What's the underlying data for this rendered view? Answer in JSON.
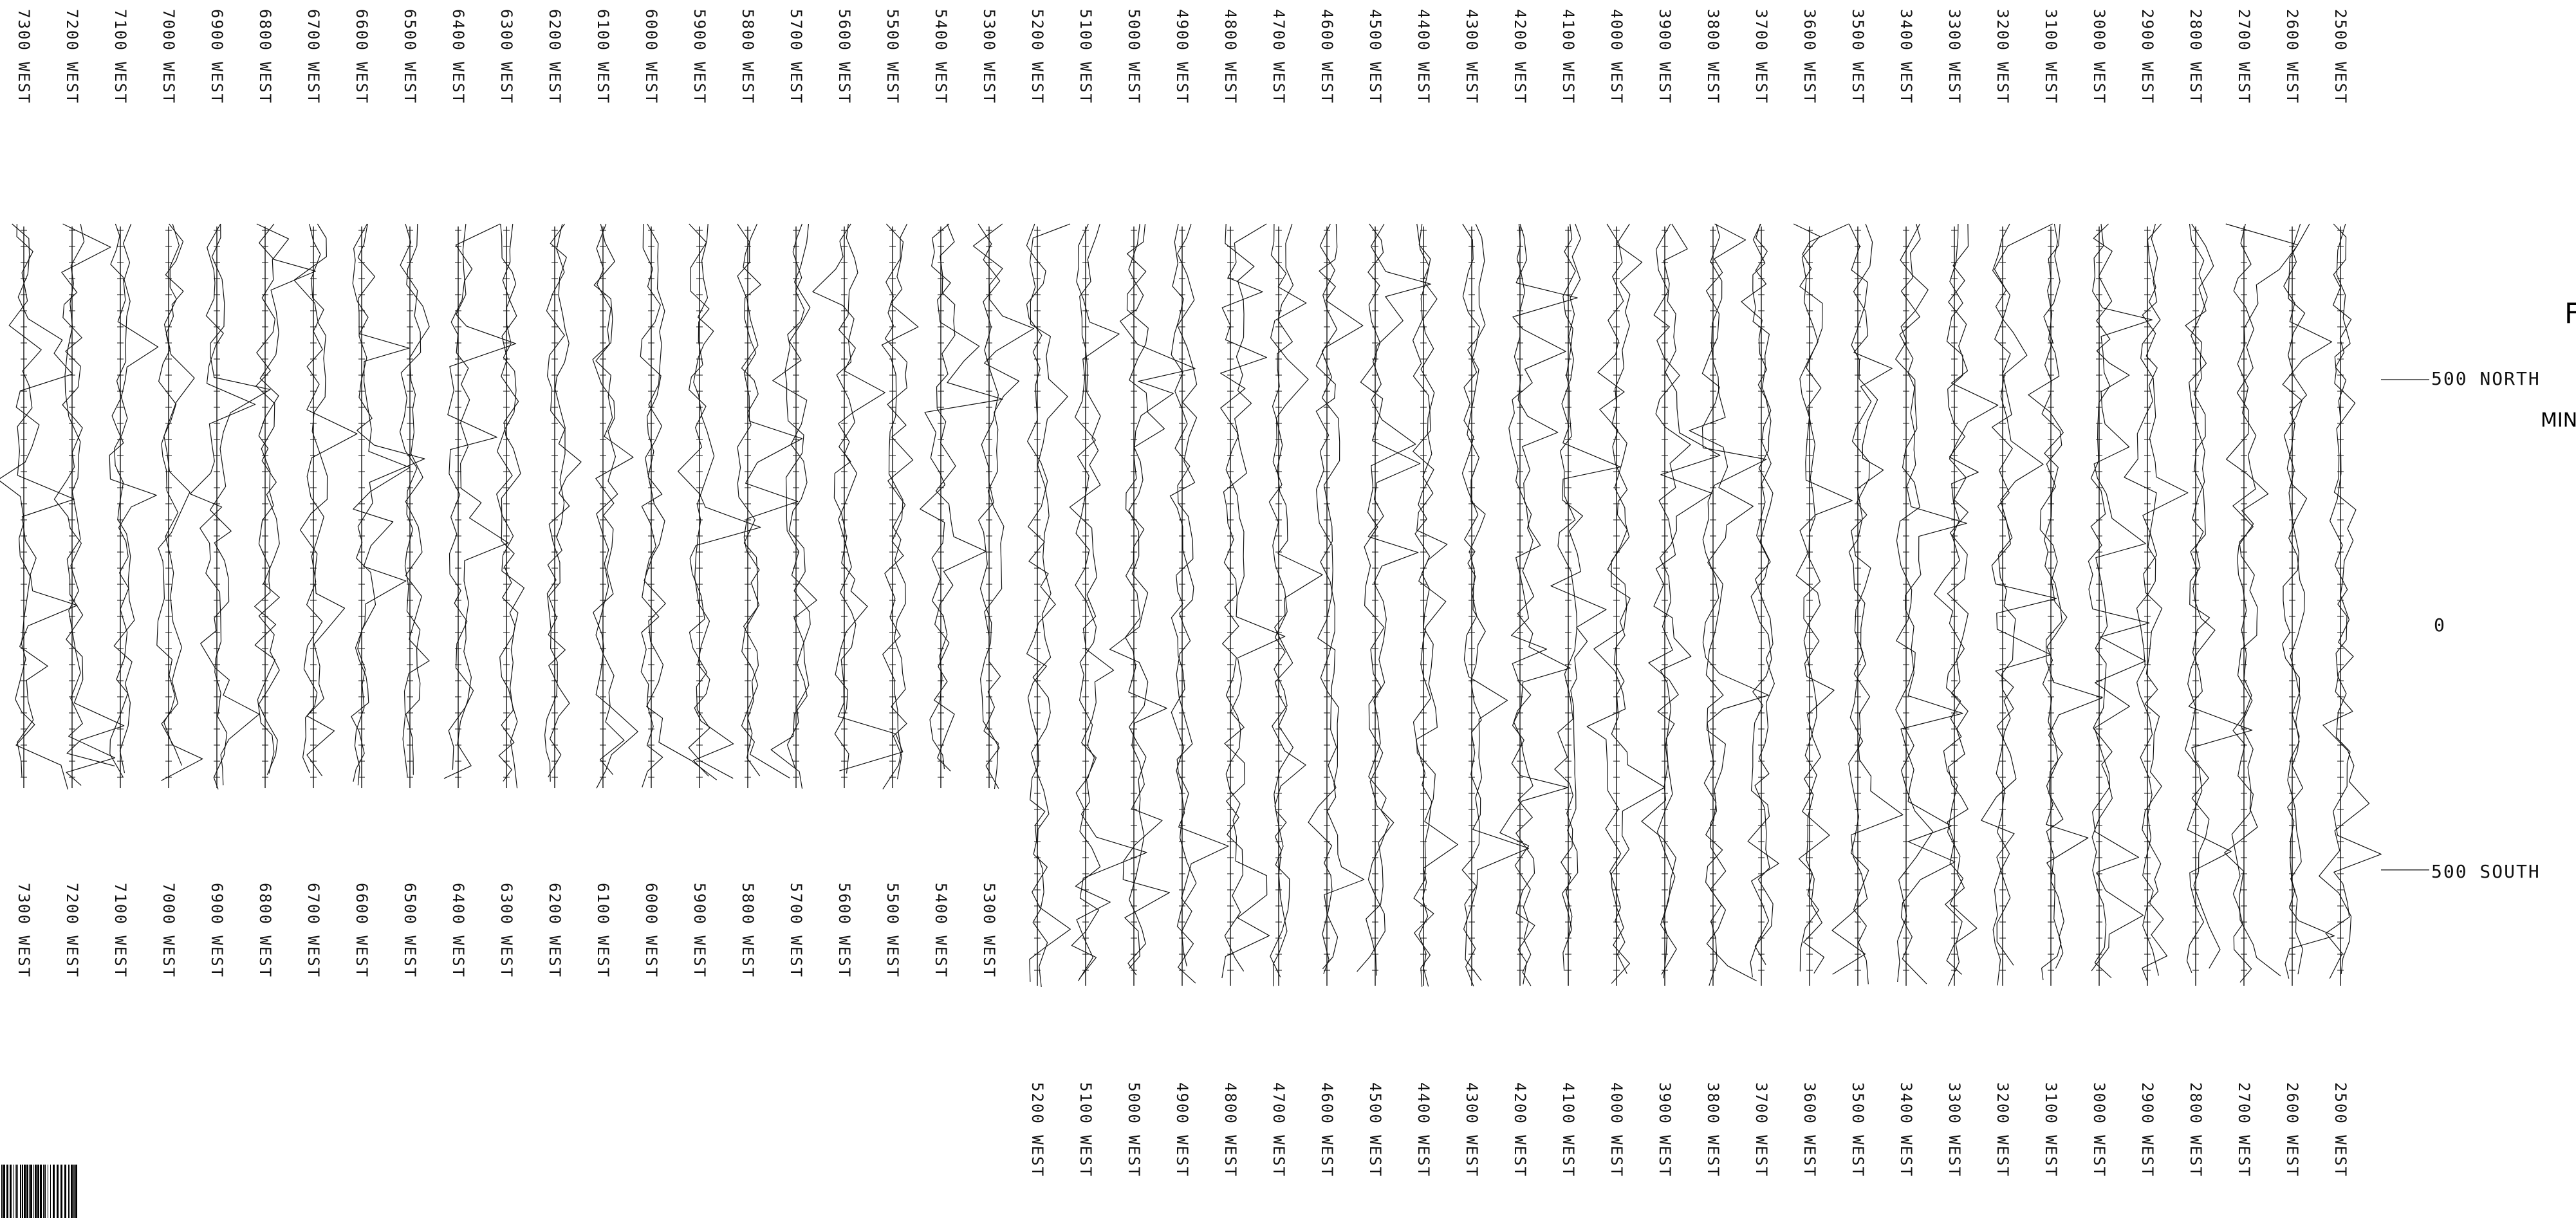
{
  "profile_lines": {
    "top_labels": [
      "7300 WEST",
      "7200 WEST",
      "7100 WEST",
      "7000 WEST",
      "6900 WEST",
      "6800 WEST",
      "6700 WEST",
      "6600 WEST",
      "6500 WEST",
      "6400 WEST",
      "6300 WEST",
      "6200 WEST",
      "6100 WEST",
      "6000 WEST",
      "5900 WEST",
      "5800 WEST",
      "5700 WEST",
      "5600 WEST",
      "5500 WEST",
      "5400 WEST",
      "5300 WEST",
      "5200 WEST",
      "5100 WEST",
      "5000 WEST",
      "4900 WEST",
      "4800 WEST",
      "4700 WEST",
      "4600 WEST",
      "4500 WEST",
      "4400 WEST",
      "4300 WEST",
      "4200 WEST",
      "4100 WEST",
      "4000 WEST",
      "3900 WEST",
      "3800 WEST",
      "3700 WEST",
      "3600 WEST",
      "3500 WEST",
      "3400 WEST",
      "3300 WEST",
      "3200 WEST",
      "3100 WEST",
      "3000 WEST",
      "2900 WEST",
      "2800 WEST",
      "2700 WEST",
      "2600 WEST",
      "2500 WEST"
    ],
    "bottom_labels_upper": [
      "7300 WEST",
      "7200 WEST",
      "7100 WEST",
      "7000 WEST",
      "6900 WEST",
      "6800 WEST",
      "6700 WEST",
      "6600 WEST",
      "6500 WEST",
      "6400 WEST",
      "6300 WEST",
      "6200 WEST",
      "6100 WEST",
      "6000 WEST",
      "5900 WEST",
      "5800 WEST",
      "5700 WEST",
      "5600 WEST",
      "5500 WEST",
      "5400 WEST",
      "5300 WEST"
    ],
    "bottom_labels_lower": [
      "5200 WEST",
      "5100 WEST",
      "5000 WEST",
      "4900 WEST",
      "4800 WEST",
      "4700 WEST",
      "4600 WEST",
      "4500 WEST",
      "4400 WEST",
      "4300 WEST",
      "4200 WEST",
      "4100 WEST",
      "4000 WEST",
      "3900 WEST",
      "3800 WEST",
      "3700 WEST",
      "3600 WEST",
      "3500 WEST",
      "3400 WEST",
      "3300 WEST",
      "3200 WEST",
      "3100 WEST",
      "3000 WEST",
      "2900 WEST",
      "2800 WEST",
      "2700 WEST",
      "2600 WEST",
      "2500 WEST"
    ]
  },
  "axis": {
    "north_label": "500 NORTH",
    "zero_label": "0",
    "south_label": "500 SOUTH"
  },
  "side_text": {
    "letter": "F",
    "word": "MIN"
  },
  "style": {
    "line_color": "#111111",
    "background": "#ffffff"
  }
}
